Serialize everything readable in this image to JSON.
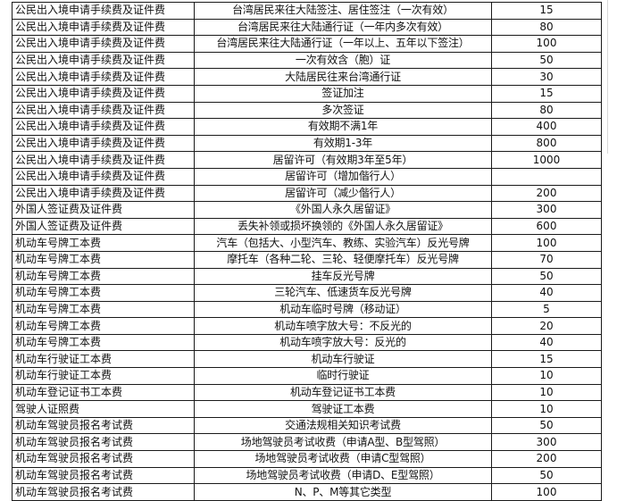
{
  "rows": [
    {
      "category": "公民出入境申请手续费及证件费",
      "item": "台湾居民来往大陆签注、居住签注（一次有效）",
      "fee": "15"
    },
    {
      "category": "公民出入境申请手续费及证件费",
      "item": "台湾居民来往大陆通行证（一年内多次有效）",
      "fee": "80"
    },
    {
      "category": "公民出入境申请手续费及证件费",
      "item": "台湾居民来往大陆通行证（一年以上、五年以下签注）",
      "fee": "100"
    },
    {
      "category": "公民出入境申请手续费及证件费",
      "item": "一次有效含（胞）证",
      "fee": "50"
    },
    {
      "category": "公民出入境申请手续费及证件费",
      "item": "大陆居民往来台湾通行证",
      "fee": "30"
    },
    {
      "category": "公民出入境申请手续费及证件费",
      "item": "签证加注",
      "fee": "15"
    },
    {
      "category": "公民出入境申请手续费及证件费",
      "item": "多次签证",
      "fee": "80"
    },
    {
      "category": "公民出入境申请手续费及证件费",
      "item": "有效期不满1年",
      "fee": "400"
    },
    {
      "category": "公民出入境申请手续费及证件费",
      "item": "有效期1-3年",
      "fee": "800"
    },
    {
      "category": "公民出入境申请手续费及证件费",
      "item": "居留许可（有效期3年至5年）",
      "fee": "1000"
    },
    {
      "category": "公民出入境申请手续费及证件费",
      "item": "居留许可（增加偕行人）",
      "fee": ""
    },
    {
      "category": "公民出入境申请手续费及证件费",
      "item": "居留许可（减少偕行人）",
      "fee": "200"
    },
    {
      "category": "外国人签证费及证件费",
      "item": "《外国人永久居留证》",
      "fee": "300"
    },
    {
      "category": "外国人签证费及证件费",
      "item": "丢失补领或损坏换领的《外国人永久居留证》",
      "fee": "600"
    },
    {
      "category": "机动车号牌工本费",
      "item": "汽车（包括大、小型汽车、教练、实验汽车）反光号牌",
      "fee": "100"
    },
    {
      "category": "机动车号牌工本费",
      "item": "摩托车（各种二轮、三轮、轻便摩托车）反光号牌",
      "fee": "70"
    },
    {
      "category": "机动车号牌工本费",
      "item": "挂车反光号牌",
      "fee": "50"
    },
    {
      "category": "机动车号牌工本费",
      "item": "三轮汽车、低速货车反光号牌",
      "fee": "40"
    },
    {
      "category": "机动车号牌工本费",
      "item": "机动车临时号牌（移动证）",
      "fee": "5"
    },
    {
      "category": "机动车号牌工本费",
      "item": "机动车喷字放大号：不反光的",
      "fee": "20"
    },
    {
      "category": "机动车号牌工本费",
      "item": "机动车喷字放大号：反光的",
      "fee": "40"
    },
    {
      "category": "机动车行驶证工本费",
      "item": "机动车行驶证",
      "fee": "15"
    },
    {
      "category": "机动车行驶证工本费",
      "item": "临时行驶证",
      "fee": "10"
    },
    {
      "category": "机动车登记证书工本费",
      "item": "机动车登记证书工本费",
      "fee": "10"
    },
    {
      "category": "驾驶人证照费",
      "item": "驾驶证工本费",
      "fee": "10"
    },
    {
      "category": "机动车驾驶员报名考试费",
      "item": "交通法规相关知识考试费",
      "fee": "50"
    },
    {
      "category": "机动车驾驶员报名考试费",
      "item": "场地驾驶员考试收费（申请A型、B型驾照）",
      "fee": "300"
    },
    {
      "category": "机动车驾驶员报名考试费",
      "item": "场地驾驶员考试收费（申请C型驾照）",
      "fee": "200"
    },
    {
      "category": "机动车驾驶员报名考试费",
      "item": "场地驾驶员考试收费（申请D、E型驾照）",
      "fee": "50"
    },
    {
      "category": "机动车驾驶员报名考试费",
      "item": "N、P、M等其它类型",
      "fee": "100"
    }
  ]
}
